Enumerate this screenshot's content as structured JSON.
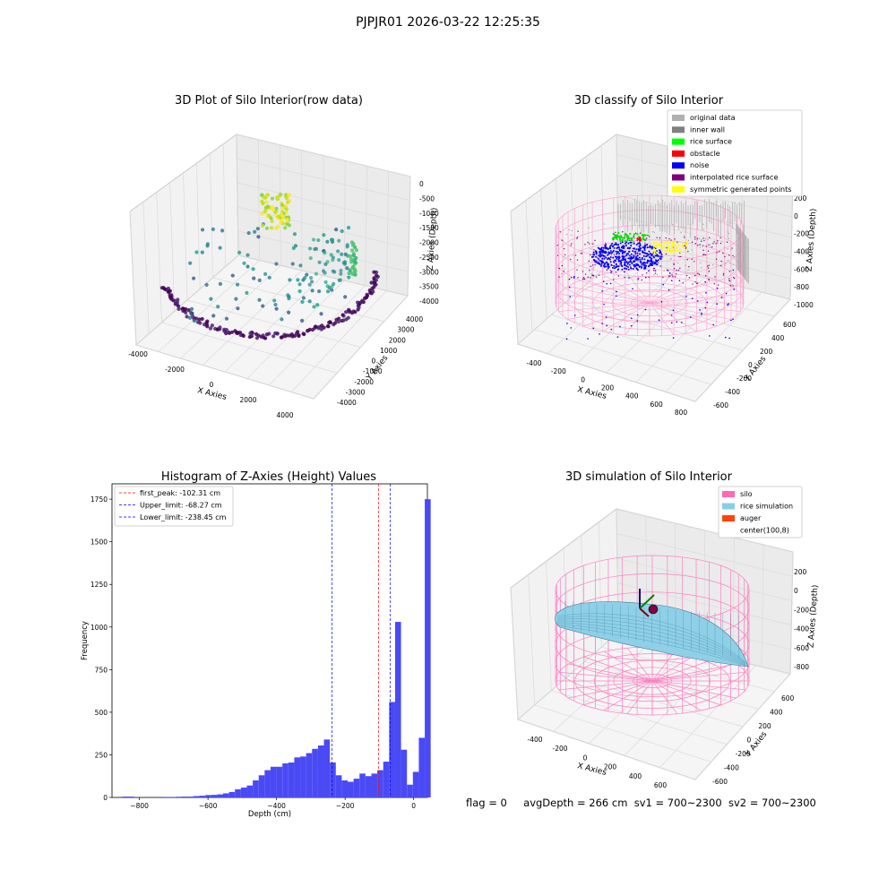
{
  "suptitle": "PJPJR01 2026-03-22 12:25:35",
  "status": {
    "flag": "flag = 0",
    "avg_depth": "avgDepth = 266 cm",
    "sv1": "sv1 = 700~2300",
    "sv2": "sv2 = 700~2300"
  },
  "chart_data": [
    {
      "type": "scatter3d",
      "title": "3D Plot of Silo Interior(row data)",
      "xlabel": "X Axies",
      "ylabel": "Y Axies",
      "zlabel": "Z Axies (Depth)",
      "x_ticks": [
        -4000,
        -2000,
        0,
        2000,
        4000
      ],
      "y_ticks": [
        -4000,
        -3000,
        -2000,
        -1000,
        0,
        1000,
        2000,
        3000,
        4000
      ],
      "z_ticks": [
        0,
        -500,
        -1000,
        -1500,
        -2000,
        -2500,
        -3000,
        -3500,
        -4000
      ],
      "colormap": "viridis"
    },
    {
      "type": "scatter3d",
      "title": "3D classify of Silo Interior",
      "xlabel": "X Axies",
      "ylabel": "Y Axies",
      "zlabel": "Z Axies (Depth)",
      "x_ticks": [
        -400,
        -200,
        0,
        200,
        400,
        600,
        800
      ],
      "y_ticks": [
        -600,
        -400,
        -200,
        0,
        200,
        400,
        600
      ],
      "z_ticks": [
        200,
        0,
        -200,
        -400,
        -600,
        -800,
        -1000
      ],
      "legend": [
        {
          "label": "original data",
          "color": "#b0b0b0"
        },
        {
          "label": "inner wall",
          "color": "#808080"
        },
        {
          "label": "rice surface",
          "color": "#00ff00"
        },
        {
          "label": "obstacle",
          "color": "#ff0000"
        },
        {
          "label": "noise",
          "color": "#0000ff"
        },
        {
          "label": "interpolated rice surface",
          "color": "#800080"
        },
        {
          "label": "symmetric generated points",
          "color": "#ffff00"
        }
      ],
      "legend_loc": "upper right"
    },
    {
      "type": "bar",
      "title": "Histogram of Z-Axies (Height) Values",
      "xlabel": "Depth (cm)",
      "ylabel": "Frequency",
      "xlim": [
        -880,
        40
      ],
      "ylim": [
        0,
        1840
      ],
      "x_ticks": [
        -800,
        -600,
        -400,
        -200,
        0
      ],
      "y_ticks": [
        0,
        250,
        500,
        750,
        1000,
        1250,
        1500,
        1750
      ],
      "bar_color": "#4a4af5",
      "bin_width": 17.3,
      "bin_start": -850,
      "values": [
        5,
        5,
        0,
        0,
        0,
        0,
        0,
        3,
        3,
        4,
        5,
        5,
        8,
        10,
        14,
        15,
        18,
        24,
        32,
        48,
        58,
        70,
        100,
        130,
        160,
        180,
        180,
        200,
        205,
        235,
        240,
        260,
        285,
        305,
        340,
        205,
        130,
        100,
        92,
        110,
        140,
        125,
        140,
        160,
        210,
        560,
        1030,
        280,
        75,
        150,
        350,
        1750
      ],
      "lines": [
        {
          "label": "first_peak: -102.31 cm",
          "x": -102.31,
          "color": "#ff0000"
        },
        {
          "label": "Upper_limit: -68.27 cm",
          "x": -68.27,
          "color": "#0000ff"
        },
        {
          "label": "Lower_limit: -238.45 cm",
          "x": -238.45,
          "color": "#0000ff"
        }
      ],
      "legend_loc": "upper left"
    },
    {
      "type": "surface3d",
      "title": "3D simulation of Silo Interior",
      "xlabel": "X Axies",
      "ylabel": "Y Axies",
      "zlabel": "Z Axies (Depth)",
      "x_ticks": [
        -400,
        -200,
        0,
        200,
        400,
        600
      ],
      "y_ticks": [
        -600,
        -400,
        -200,
        0,
        200,
        400,
        600
      ],
      "z_ticks": [
        200,
        0,
        -200,
        -400,
        -600,
        -800
      ],
      "legend": [
        {
          "label": "silo",
          "color": "#ff69b4"
        },
        {
          "label": "rice simulation",
          "color": "#87ceeb"
        },
        {
          "label": "auger",
          "color": "#ff4500"
        },
        {
          "label": "center(100,8)",
          "color": "#ffffff"
        }
      ],
      "legend_loc": "upper right"
    }
  ]
}
